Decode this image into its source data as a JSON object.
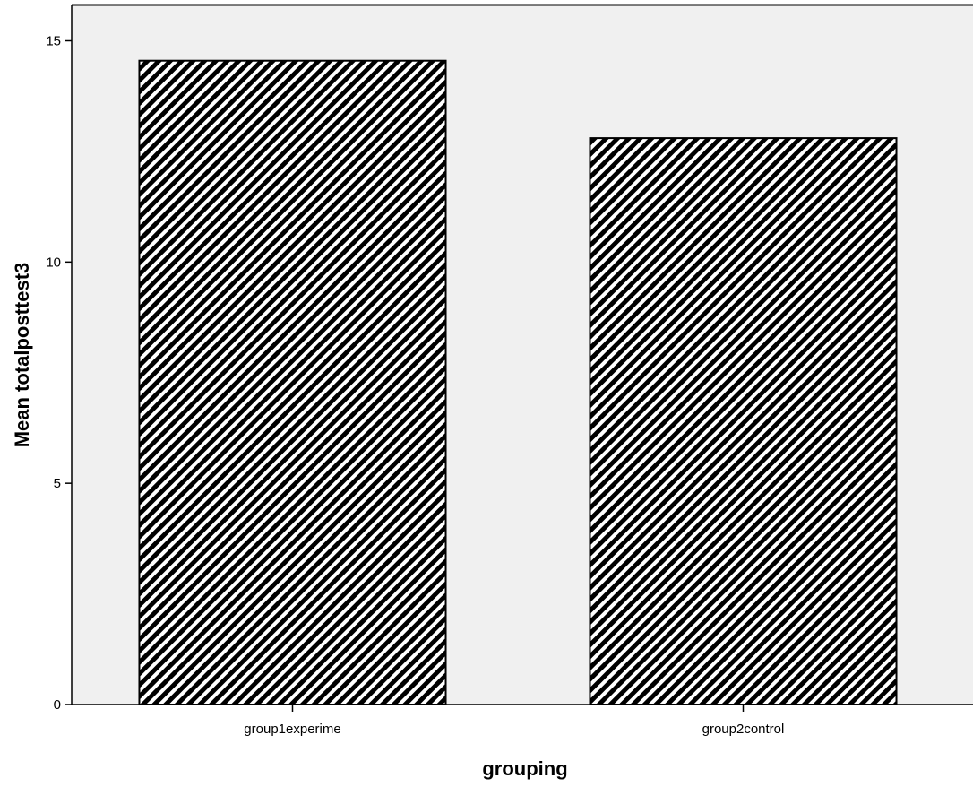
{
  "chart_data": {
    "type": "bar",
    "categories": [
      "group1experime",
      "group2control"
    ],
    "values": [
      14.55,
      12.8
    ],
    "title": "",
    "xlabel": "grouping",
    "ylabel": "Mean totalposttest3",
    "ylim": [
      0,
      15.8
    ],
    "yticks": [
      "0",
      "5",
      "10",
      "15"
    ],
    "grid": false,
    "legend": "none",
    "colors": {
      "plot_background": "#f0f0f0",
      "bar_fill": "#000000",
      "bar_hatch_gap": "#ffffff",
      "axis": "#000000"
    }
  }
}
